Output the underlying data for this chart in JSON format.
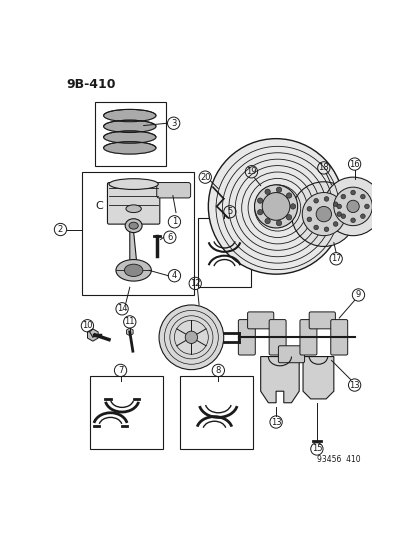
{
  "title_text": "9B-410",
  "bg_color": "#ffffff",
  "line_color": "#1a1a1a",
  "footnote": "93456  410",
  "fig_width": 4.14,
  "fig_height": 5.33
}
